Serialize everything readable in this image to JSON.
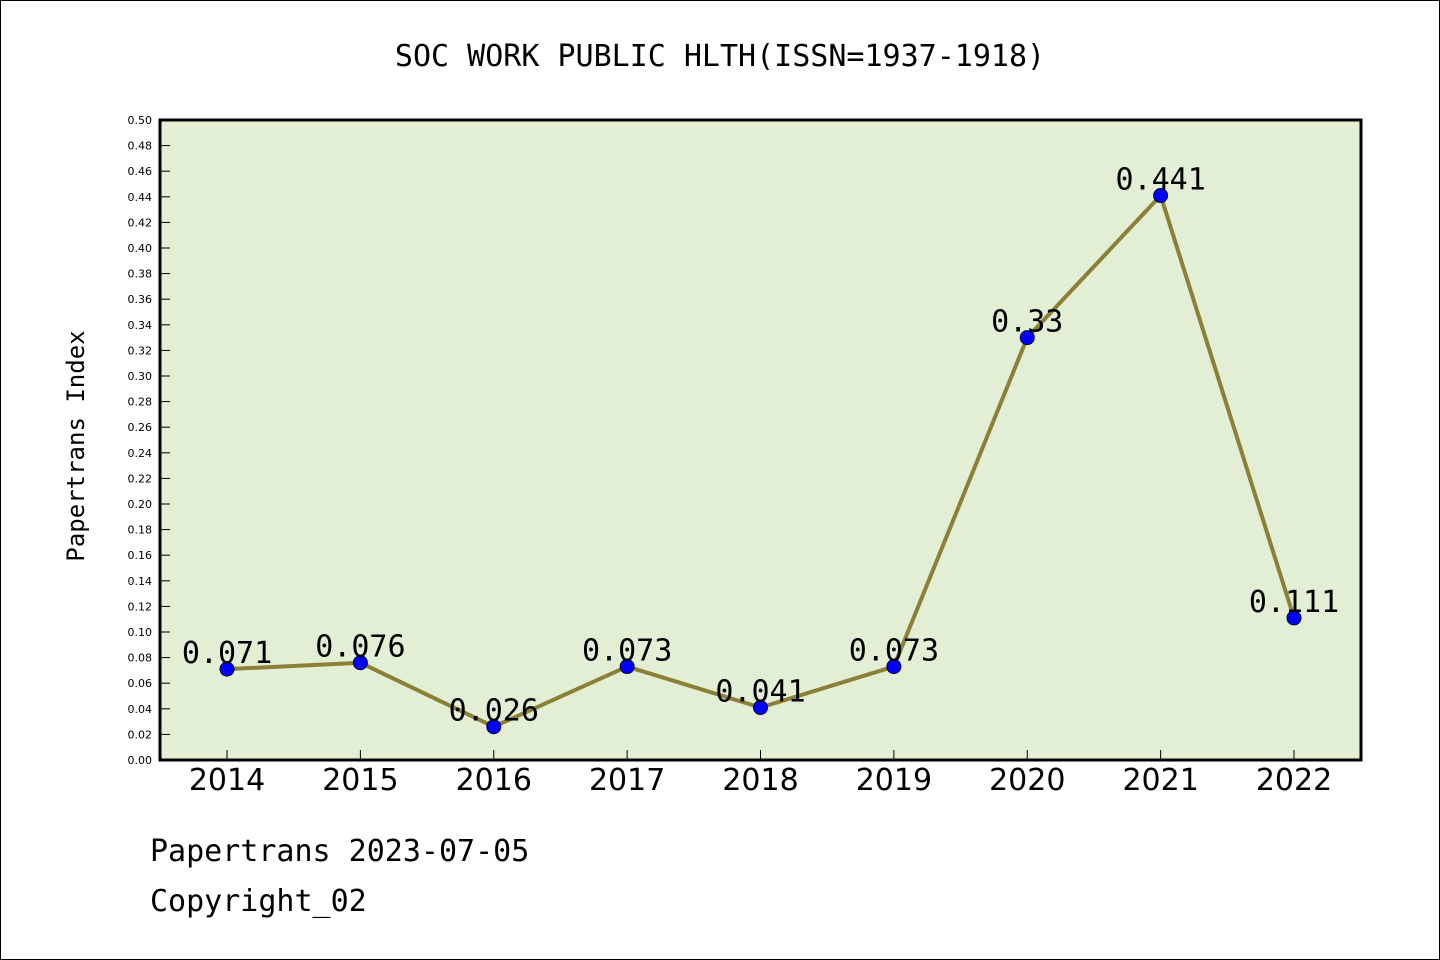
{
  "chart_data": {
    "type": "line",
    "title": "SOC WORK PUBLIC HLTH(ISSN=1937-1918)",
    "ylabel": "Papertrans Index",
    "xlabel": "",
    "categories": [
      "2014",
      "2015",
      "2016",
      "2017",
      "2018",
      "2019",
      "2020",
      "2021",
      "2022"
    ],
    "series": [
      {
        "values": [
          0.071,
          0.076,
          0.026,
          0.073,
          0.041,
          0.073,
          0.33,
          0.441,
          0.111
        ],
        "labels": [
          "0.071",
          "0.076",
          "0.026",
          "0.073",
          "0.041",
          "0.073",
          "0.33",
          "0.441",
          "0.111"
        ]
      }
    ],
    "ylim": [
      0,
      0.5
    ],
    "ytick_step": 0.02,
    "grid": false,
    "colors": {
      "plot_background": "#e2efd5",
      "line": "#8b8035",
      "marker": "#0000ff"
    }
  },
  "footer": {
    "line1": "Papertrans 2023-07-05",
    "line2": "Copyright_02"
  }
}
